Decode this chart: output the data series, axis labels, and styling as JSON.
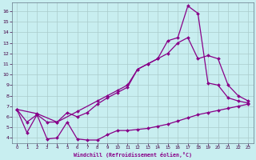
{
  "xlabel": "Windchill (Refroidissement éolien,°C)",
  "bg_color": "#c8eef0",
  "grid_color": "#aacccc",
  "line_color": "#880088",
  "xlim": [
    -0.5,
    23.5
  ],
  "ylim": [
    3.5,
    16.8
  ],
  "xticks": [
    0,
    1,
    2,
    3,
    4,
    5,
    6,
    7,
    8,
    9,
    10,
    11,
    12,
    13,
    14,
    15,
    16,
    17,
    18,
    19,
    20,
    21,
    22,
    23
  ],
  "yticks": [
    4,
    5,
    6,
    7,
    8,
    9,
    10,
    11,
    12,
    13,
    14,
    15,
    16
  ],
  "line1_x": [
    0,
    1,
    2,
    3,
    4,
    5,
    6,
    7,
    8,
    9,
    10,
    11,
    12,
    13,
    14,
    15,
    16,
    17,
    18,
    19,
    20,
    21,
    22,
    23
  ],
  "line1_y": [
    6.7,
    4.5,
    6.2,
    3.9,
    4.0,
    5.5,
    3.9,
    3.8,
    3.8,
    4.3,
    4.7,
    4.7,
    4.8,
    4.9,
    5.1,
    5.3,
    5.6,
    5.9,
    6.2,
    6.4,
    6.6,
    6.8,
    7.0,
    7.2
  ],
  "line2_x": [
    0,
    2,
    4,
    6,
    8,
    9,
    10,
    11,
    12,
    13,
    14,
    15,
    16,
    17,
    18,
    19,
    20,
    21,
    22,
    23
  ],
  "line2_y": [
    6.7,
    6.3,
    5.5,
    6.5,
    7.5,
    8.0,
    8.5,
    9.0,
    10.5,
    11.0,
    11.5,
    12.0,
    13.0,
    13.5,
    11.5,
    11.8,
    11.5,
    9.0,
    8.0,
    7.5
  ],
  "line3_x": [
    0,
    1,
    2,
    3,
    4,
    5,
    6,
    7,
    8,
    9,
    10,
    11,
    12,
    13,
    14,
    15,
    16,
    17,
    18,
    19,
    20,
    21,
    22,
    23
  ],
  "line3_y": [
    6.7,
    5.5,
    6.2,
    5.5,
    5.5,
    6.4,
    6.0,
    6.4,
    7.2,
    7.8,
    8.3,
    8.8,
    10.5,
    11.0,
    11.5,
    13.2,
    13.5,
    16.5,
    15.8,
    9.2,
    9.0,
    7.8,
    7.5,
    7.3
  ]
}
